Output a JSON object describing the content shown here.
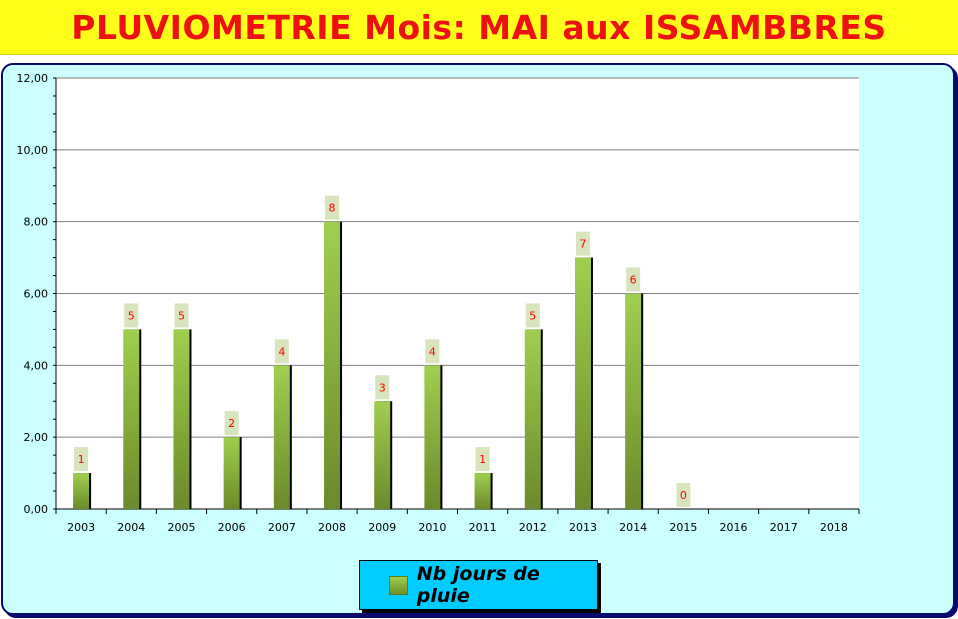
{
  "title": "PLUVIOMETRIE Mois: MAI aux ISSAMBBRES",
  "colors": {
    "title_bg": "#ffff1a",
    "title_text": "#ee1111",
    "panel_bg": "#ccffff",
    "plot_bg": "#ffffff",
    "bar_light": "#9fcf4f",
    "bar_dark": "#6b8a2a",
    "data_label": "#ff0000",
    "data_label_bg": "#d8e4bc",
    "legend_bg": "#00ccff"
  },
  "legend": {
    "label": "Nb jours de pluie"
  },
  "chart_data": {
    "type": "bar",
    "title": "PLUVIOMETRIE Mois: MAI aux ISSAMBBRES",
    "categories": [
      "2003",
      "2004",
      "2005",
      "2006",
      "2007",
      "2008",
      "2009",
      "2010",
      "2011",
      "2012",
      "2013",
      "2014",
      "2015",
      "2016",
      "2017",
      "2018"
    ],
    "series": [
      {
        "name": "Nb jours de pluie",
        "values": [
          1,
          5,
          5,
          2,
          4,
          8,
          3,
          4,
          1,
          5,
          7,
          6,
          0,
          null,
          null,
          null
        ]
      }
    ],
    "data_labels": [
      "1",
      "5",
      "5",
      "2",
      "4",
      "8",
      "3",
      "4",
      "1",
      "5",
      "7",
      "6",
      "0"
    ],
    "ylim": [
      0,
      12
    ],
    "yticks": [
      "0,00",
      "2,00",
      "4,00",
      "6,00",
      "8,00",
      "10,00",
      "12,00"
    ],
    "ytick_values": [
      0,
      2,
      4,
      6,
      8,
      10,
      12
    ],
    "grid": true,
    "legend_position": "bottom"
  }
}
